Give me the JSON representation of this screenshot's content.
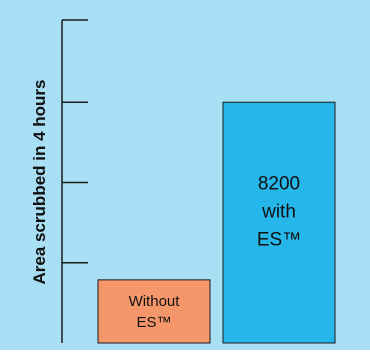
{
  "chart_data": {
    "type": "bar",
    "title": "",
    "xlabel": "",
    "ylabel": "Area scrubbed in 4 hours",
    "ylim": [
      0,
      11000
    ],
    "yticks": [
      2733,
      5467,
      8200
    ],
    "grid": false,
    "legend": "none",
    "categories": [
      "Without ES™",
      "8200 with ES™"
    ],
    "values": [
      2150,
      8200
    ],
    "bar_labels": [
      [
        "Without",
        "ES™"
      ],
      [
        "8200",
        "with",
        "ES™"
      ]
    ],
    "colors": {
      "background": "#a9dff5",
      "axis": "#1a1a1a",
      "bar_without": "#f6966b",
      "bar_with": "#25b6ea",
      "bar_outline": "#1a1a1a"
    }
  }
}
